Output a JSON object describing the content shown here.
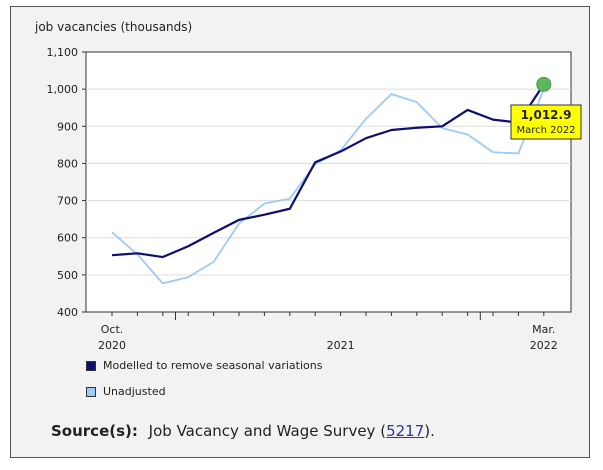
{
  "chart_data": {
    "type": "line",
    "ylabel": "job vacancies (thousands)",
    "ylim": [
      400,
      1100
    ],
    "yticks": [
      400,
      500,
      600,
      700,
      800,
      900,
      1000,
      1100
    ],
    "ytick_labels": [
      "400",
      "500",
      "600",
      "700",
      "800",
      "900",
      "1,000",
      "1,100"
    ],
    "x": [
      "2020-10",
      "2020-11",
      "2020-12",
      "2021-01",
      "2021-02",
      "2021-03",
      "2021-04",
      "2021-05",
      "2021-06",
      "2021-07",
      "2021-08",
      "2021-09",
      "2021-10",
      "2021-11",
      "2021-12",
      "2022-01",
      "2022-02",
      "2022-03"
    ],
    "xtick_labels": [
      {
        "index": 0,
        "line1": "Oct.",
        "line2": "2020"
      },
      {
        "index": 9,
        "line1": "",
        "line2": "2021"
      },
      {
        "index": 17,
        "line1": "Mar.",
        "line2": "2022"
      }
    ],
    "series": [
      {
        "name": "Modelled to remove seasonal variations",
        "color": "#0d0d73",
        "values": [
          553,
          558,
          548,
          577,
          613,
          648,
          662,
          678,
          803,
          832,
          868,
          890,
          896,
          900,
          944,
          918,
          910,
          1012.9
        ]
      },
      {
        "name": "Unadjusted",
        "color": "#9ccbf5",
        "values": [
          615,
          555,
          477,
          494,
          535,
          638,
          692,
          705,
          798,
          835,
          920,
          987,
          965,
          895,
          878,
          830,
          827,
          1000
        ]
      }
    ],
    "annotation": {
      "value": "1,012.9",
      "label": "March 2022",
      "marker_color": "#5cb85c",
      "box_color": "#ffff00"
    }
  },
  "source": {
    "label": "Source(s):",
    "text": "Job Vacancy and Wage Survey (",
    "link": "5217",
    "suffix": ")."
  }
}
